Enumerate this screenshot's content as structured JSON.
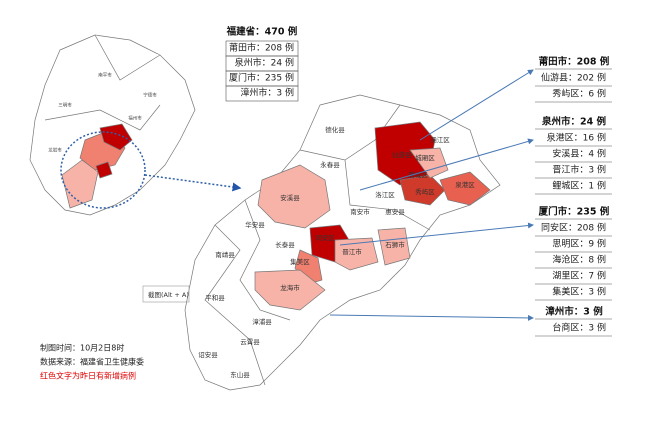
{
  "summary": {
    "title": "福建省：470 例",
    "rows": [
      "莆田市：208 例",
      "泉州市：24 例",
      "厦门市：235 例",
      "漳州市：3 例"
    ]
  },
  "panels": [
    {
      "title": "莆田市：208 例",
      "rows": [
        "仙游县：202 例",
        "秀屿区：6 例"
      ]
    },
    {
      "title": "泉州市：24 例",
      "rows": [
        "泉港区：16 例",
        "安溪县：4 例",
        "晋江市：3 例",
        "鲤城区：1 例"
      ]
    },
    {
      "title": "厦门市：235 例",
      "rows": [
        "同安区：208 例",
        "思明区：9 例",
        "海沧区：8 例",
        "湖里区：7 例",
        "集美区：3 例"
      ]
    },
    {
      "title": "漳州市：3 例",
      "rows": [
        "台商区：3 例"
      ]
    }
  ],
  "inset_labels": [
    "南平市",
    "宁德市",
    "三明市",
    "福州市",
    "龙岩市"
  ],
  "map_labels": [
    "德化县",
    "永春县",
    "仙游县",
    "城厢区",
    "涵江区",
    "荔城区",
    "秀屿区",
    "安溪县",
    "南安市",
    "洛江区",
    "惠安县",
    "泉港区",
    "华安县",
    "长泰县",
    "同安区",
    "集美区",
    "晋江市",
    "石狮市",
    "龙海市",
    "南靖县",
    "平和县",
    "漳浦县",
    "云霄县",
    "诏安县",
    "东山县"
  ],
  "tooltip": "截图(Alt + A)",
  "footer": [
    "制图时间：10月2日8时",
    "数据来源：福建省卫生健康委",
    "红色文字为昨日有新增病例"
  ]
}
